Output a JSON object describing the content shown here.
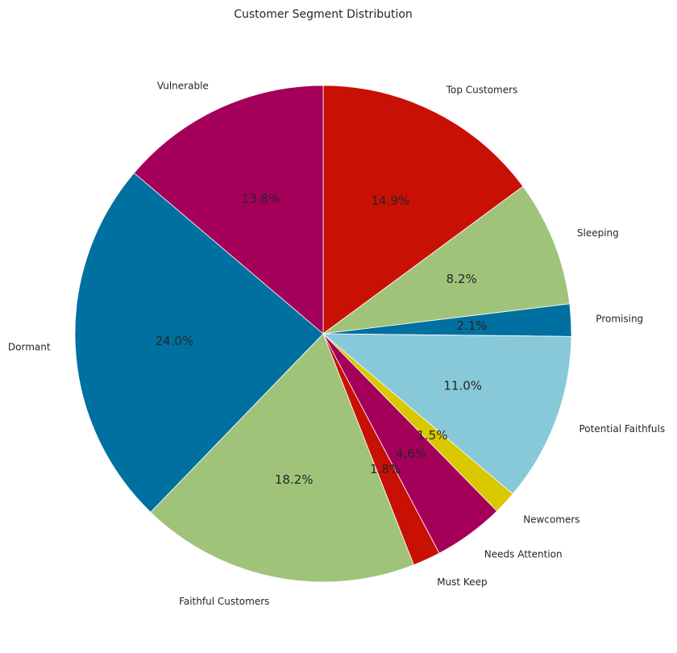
{
  "chart_data": {
    "type": "pie",
    "title": "Customer Segment Distribution",
    "start_angle_deg": 90,
    "direction": "clockwise",
    "slices": [
      {
        "label": "Top Customers",
        "value": 14.9,
        "pct_text": "14.9%",
        "color": "#c81005"
      },
      {
        "label": "Sleeping",
        "value": 8.2,
        "pct_text": "8.2%",
        "color": "#a0c37a"
      },
      {
        "label": "Promising",
        "value": 2.1,
        "pct_text": "2.1%",
        "color": "#0070a0"
      },
      {
        "label": "Potential Faithfuls",
        "value": 11.0,
        "pct_text": "11.0%",
        "color": "#87c9d8"
      },
      {
        "label": "Newcomers",
        "value": 1.5,
        "pct_text": "1.5%",
        "color": "#d9c700"
      },
      {
        "label": "Needs Attention",
        "value": 4.6,
        "pct_text": "4.6%",
        "color": "#a4005a"
      },
      {
        "label": "Must Keep",
        "value": 1.8,
        "pct_text": "1.8%",
        "color": "#c81005"
      },
      {
        "label": "Faithful Customers",
        "value": 18.2,
        "pct_text": "18.2%",
        "color": "#a0c37a"
      },
      {
        "label": "Dormant",
        "value": 24.0,
        "pct_text": "24.0%",
        "color": "#0070a0"
      },
      {
        "label": "Vulnerable",
        "value": 13.8,
        "pct_text": "13.8%",
        "color": "#a4005a"
      }
    ]
  }
}
